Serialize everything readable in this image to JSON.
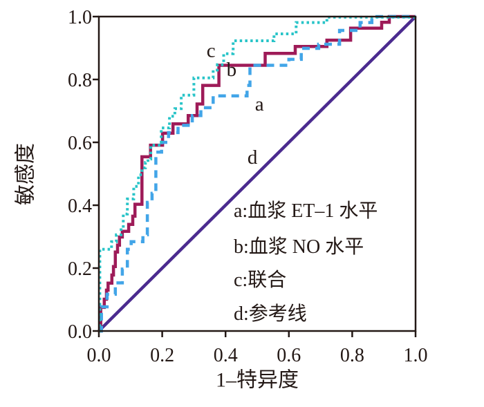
{
  "figure": {
    "background": "#ffffff",
    "axis_color": "#231815",
    "text_color": "#231815"
  },
  "chart_data": {
    "type": "line",
    "subtype": "roc-step-curves",
    "title": "",
    "xlabel": "1–特异度",
    "ylabel": "敏感度",
    "xlim": [
      0,
      1
    ],
    "ylim": [
      0,
      1
    ],
    "grid": false,
    "legend_position": "inside-lower-right",
    "x_ticks": [
      0.0,
      0.2,
      0.4,
      0.6,
      0.8,
      1.0
    ],
    "y_ticks": [
      0.0,
      0.2,
      0.4,
      0.6,
      0.8,
      1.0
    ],
    "x_tick_labels": [
      "0.0",
      "0.2",
      "0.4",
      "0.6",
      "0.8",
      "1.0"
    ],
    "y_tick_labels": [
      "0.0",
      "0.2",
      "0.4",
      "0.6",
      "0.8",
      "1.0"
    ],
    "series": [
      {
        "id": "a",
        "letter": "a",
        "name": "血浆 ET–1 水平",
        "color": "#42A5E8",
        "style": "dashed",
        "width": 4.5,
        "dash": [
          11,
          8
        ],
        "points": [
          [
            0,
            0
          ],
          [
            0.008,
            0
          ],
          [
            0.008,
            0.077
          ],
          [
            0.026,
            0.077
          ],
          [
            0.026,
            0.117
          ],
          [
            0.052,
            0.117
          ],
          [
            0.052,
            0.153
          ],
          [
            0.074,
            0.153
          ],
          [
            0.074,
            0.197
          ],
          [
            0.09,
            0.197
          ],
          [
            0.09,
            0.26
          ],
          [
            0.102,
            0.26
          ],
          [
            0.102,
            0.284
          ],
          [
            0.139,
            0.284
          ],
          [
            0.139,
            0.306
          ],
          [
            0.153,
            0.306
          ],
          [
            0.153,
            0.409
          ],
          [
            0.168,
            0.409
          ],
          [
            0.168,
            0.438
          ],
          [
            0.18,
            0.438
          ],
          [
            0.18,
            0.569
          ],
          [
            0.198,
            0.569
          ],
          [
            0.198,
            0.6
          ],
          [
            0.22,
            0.6
          ],
          [
            0.22,
            0.631
          ],
          [
            0.25,
            0.631
          ],
          [
            0.25,
            0.654
          ],
          [
            0.295,
            0.654
          ],
          [
            0.295,
            0.685
          ],
          [
            0.322,
            0.685
          ],
          [
            0.322,
            0.71
          ],
          [
            0.361,
            0.71
          ],
          [
            0.361,
            0.748
          ],
          [
            0.468,
            0.748
          ],
          [
            0.468,
            0.781
          ],
          [
            0.477,
            0.781
          ],
          [
            0.477,
            0.845
          ],
          [
            0.6,
            0.845
          ],
          [
            0.6,
            0.864
          ],
          [
            0.639,
            0.864
          ],
          [
            0.639,
            0.899
          ],
          [
            0.694,
            0.899
          ],
          [
            0.694,
            0.912
          ],
          [
            0.76,
            0.912
          ],
          [
            0.76,
            0.956
          ],
          [
            0.825,
            0.956
          ],
          [
            0.825,
            0.981
          ],
          [
            0.862,
            0.981
          ],
          [
            0.862,
            1
          ],
          [
            1,
            1
          ]
        ]
      },
      {
        "id": "b",
        "letter": "b",
        "name": "血浆 NO 水平",
        "color": "#9E1B58",
        "style": "solid",
        "width": 4.5,
        "dash": null,
        "points": [
          [
            0,
            0
          ],
          [
            0.006,
            0
          ],
          [
            0.006,
            0.075
          ],
          [
            0.017,
            0.075
          ],
          [
            0.017,
            0.101
          ],
          [
            0.024,
            0.101
          ],
          [
            0.024,
            0.13
          ],
          [
            0.029,
            0.13
          ],
          [
            0.029,
            0.152
          ],
          [
            0.041,
            0.152
          ],
          [
            0.041,
            0.178
          ],
          [
            0.046,
            0.178
          ],
          [
            0.046,
            0.205
          ],
          [
            0.052,
            0.205
          ],
          [
            0.052,
            0.251
          ],
          [
            0.059,
            0.251
          ],
          [
            0.059,
            0.273
          ],
          [
            0.065,
            0.273
          ],
          [
            0.065,
            0.299
          ],
          [
            0.074,
            0.299
          ],
          [
            0.074,
            0.317
          ],
          [
            0.094,
            0.317
          ],
          [
            0.094,
            0.339
          ],
          [
            0.107,
            0.339
          ],
          [
            0.107,
            0.365
          ],
          [
            0.114,
            0.365
          ],
          [
            0.114,
            0.403
          ],
          [
            0.136,
            0.403
          ],
          [
            0.136,
            0.554
          ],
          [
            0.163,
            0.554
          ],
          [
            0.163,
            0.591
          ],
          [
            0.201,
            0.591
          ],
          [
            0.201,
            0.629
          ],
          [
            0.234,
            0.629
          ],
          [
            0.234,
            0.659
          ],
          [
            0.282,
            0.659
          ],
          [
            0.282,
            0.685
          ],
          [
            0.31,
            0.685
          ],
          [
            0.31,
            0.722
          ],
          [
            0.328,
            0.722
          ],
          [
            0.328,
            0.781
          ],
          [
            0.379,
            0.781
          ],
          [
            0.379,
            0.845
          ],
          [
            0.525,
            0.845
          ],
          [
            0.525,
            0.883
          ],
          [
            0.62,
            0.883
          ],
          [
            0.62,
            0.905
          ],
          [
            0.72,
            0.905
          ],
          [
            0.72,
            0.925
          ],
          [
            0.795,
            0.925
          ],
          [
            0.795,
            0.963
          ],
          [
            0.893,
            0.963
          ],
          [
            0.893,
            0.982
          ],
          [
            0.917,
            0.982
          ],
          [
            0.917,
            1
          ],
          [
            1,
            1
          ]
        ]
      },
      {
        "id": "c",
        "letter": "c",
        "name": "联合",
        "color": "#28C4C8",
        "style": "dotted",
        "width": 4,
        "dash": [
          3.5,
          4.2
        ],
        "points": [
          [
            0,
            0
          ],
          [
            0.003,
            0
          ],
          [
            0.003,
            0.26
          ],
          [
            0.04,
            0.26
          ],
          [
            0.04,
            0.284
          ],
          [
            0.055,
            0.284
          ],
          [
            0.055,
            0.306
          ],
          [
            0.07,
            0.306
          ],
          [
            0.07,
            0.328
          ],
          [
            0.077,
            0.328
          ],
          [
            0.077,
            0.372
          ],
          [
            0.09,
            0.372
          ],
          [
            0.09,
            0.42
          ],
          [
            0.11,
            0.42
          ],
          [
            0.11,
            0.46
          ],
          [
            0.125,
            0.46
          ],
          [
            0.125,
            0.497
          ],
          [
            0.136,
            0.497
          ],
          [
            0.136,
            0.519
          ],
          [
            0.147,
            0.519
          ],
          [
            0.147,
            0.536
          ],
          [
            0.155,
            0.536
          ],
          [
            0.155,
            0.547
          ],
          [
            0.164,
            0.547
          ],
          [
            0.164,
            0.591
          ],
          [
            0.197,
            0.591
          ],
          [
            0.197,
            0.646
          ],
          [
            0.223,
            0.646
          ],
          [
            0.223,
            0.683
          ],
          [
            0.24,
            0.683
          ],
          [
            0.24,
            0.707
          ],
          [
            0.26,
            0.707
          ],
          [
            0.26,
            0.75
          ],
          [
            0.3,
            0.75
          ],
          [
            0.3,
            0.805
          ],
          [
            0.361,
            0.805
          ],
          [
            0.361,
            0.83
          ],
          [
            0.374,
            0.83
          ],
          [
            0.374,
            0.847
          ],
          [
            0.394,
            0.847
          ],
          [
            0.394,
            0.882
          ],
          [
            0.424,
            0.882
          ],
          [
            0.424,
            0.923
          ],
          [
            0.553,
            0.923
          ],
          [
            0.553,
            0.945
          ],
          [
            0.623,
            0.945
          ],
          [
            0.623,
            0.981
          ],
          [
            0.72,
            0.981
          ],
          [
            0.72,
            0.998
          ],
          [
            1,
            0.998
          ]
        ]
      },
      {
        "id": "d",
        "letter": "d",
        "name": "参考线",
        "color": "#4B2B8F",
        "style": "solid",
        "width": 4.5,
        "dash": null,
        "points": [
          [
            0,
            0
          ],
          [
            1,
            1
          ]
        ]
      }
    ],
    "curve_letter_annotations": [
      {
        "letter": "c",
        "x": 0.354,
        "y": 0.894
      },
      {
        "letter": "b",
        "x": 0.419,
        "y": 0.833
      },
      {
        "letter": "a",
        "x": 0.507,
        "y": 0.723
      },
      {
        "letter": "d",
        "x": 0.485,
        "y": 0.554
      }
    ],
    "legend_items": [
      {
        "text": "a:血浆 ET–1 水平"
      },
      {
        "text": "b:血浆 NO 水平"
      },
      {
        "text": "c:联合"
      },
      {
        "text": "d:参考线"
      }
    ]
  }
}
